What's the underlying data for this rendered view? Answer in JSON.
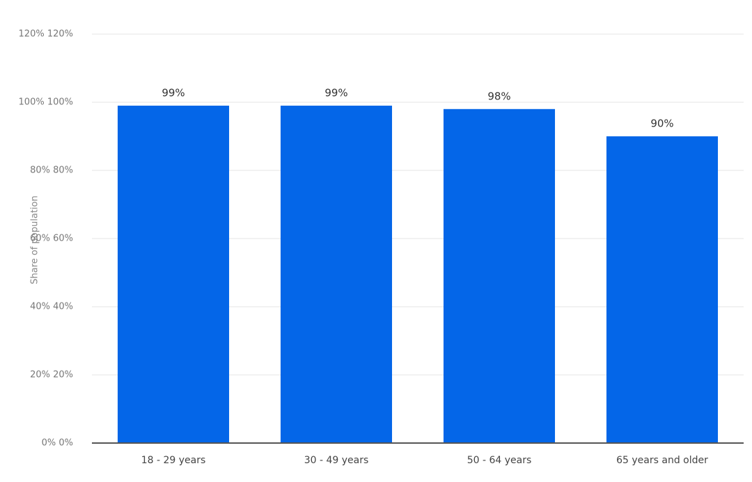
{
  "chart_data": {
    "type": "bar",
    "y_label": "Share of population",
    "categories": [
      "18 - 29 years",
      "30 - 49 years",
      "50 - 64 years",
      "65 years and older"
    ],
    "values": [
      99,
      99,
      98,
      90
    ],
    "value_labels": [
      "99%",
      "99%",
      "98%",
      "90%"
    ],
    "color": "#0466e8",
    "ylim": [
      0,
      120
    ],
    "yticks": [
      {
        "value": 0,
        "label": "0% 0%"
      },
      {
        "value": 20,
        "label": "20% 20%"
      },
      {
        "value": 40,
        "label": "40% 40%"
      },
      {
        "value": 60,
        "label": "60% 60%"
      },
      {
        "value": 80,
        "label": "80% 80%"
      },
      {
        "value": 100,
        "label": "100% 100%"
      },
      {
        "value": 120,
        "label": "120% 120%"
      }
    ],
    "grid": true
  }
}
